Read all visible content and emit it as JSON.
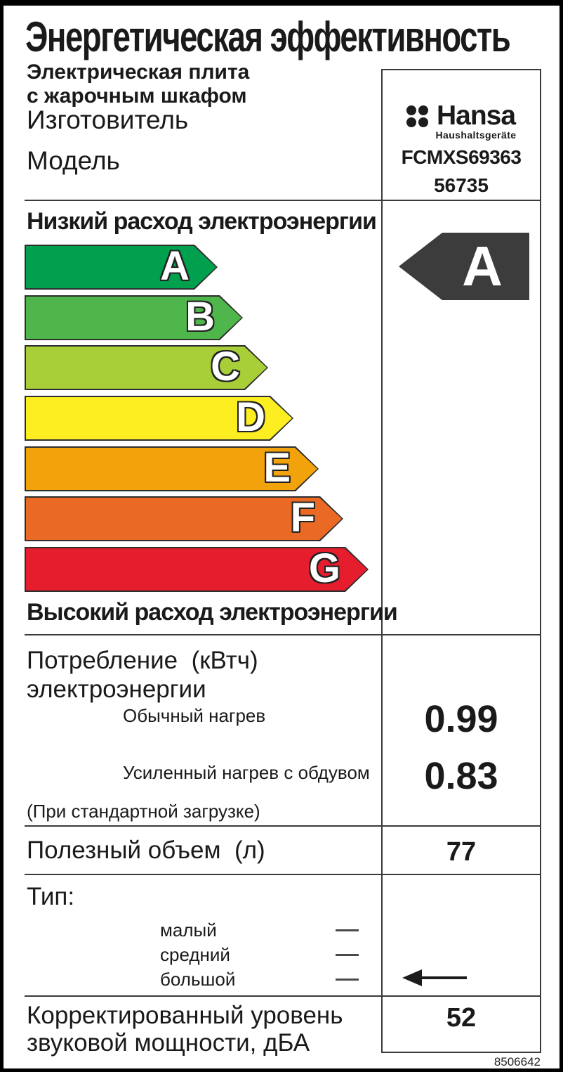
{
  "label": {
    "title": "Энергетическая эффективность",
    "subtitle_line1": "Электрическая плита",
    "subtitle_line2": "с жарочным шкафом",
    "manufacturer_label": "Изготовитель",
    "model_label": "Модель",
    "brand": {
      "name": "Hansa",
      "tagline": "Haushaltsgeräte",
      "model_code": "FCMXS69363",
      "model_number": "56735"
    },
    "scale": {
      "low_label": "Низкий расход электроэнергии",
      "high_label": "Высокий расход электроэнергии",
      "grades": [
        {
          "letter": "A",
          "color": "#00a04e"
        },
        {
          "letter": "B",
          "color": "#4eb64a"
        },
        {
          "letter": "C",
          "color": "#a8cf38"
        },
        {
          "letter": "D",
          "color": "#fcee21"
        },
        {
          "letter": "E",
          "color": "#f2a30b"
        },
        {
          "letter": "F",
          "color": "#ea6a25"
        },
        {
          "letter": "G",
          "color": "#e51d2c"
        }
      ],
      "rating": "A",
      "rating_color": "#3c3c3c"
    },
    "consumption": {
      "heading_line1": "Потребление  (кВтч)",
      "heading_line2": "электроэнергии",
      "rows": [
        {
          "label": "Обычный нагрев",
          "value": "0.99"
        },
        {
          "label": "Усиленный нагрев с обдувом",
          "value": "0.83"
        }
      ],
      "note": "(При стандартной загрузке)"
    },
    "volume": {
      "label": "Полезный объем  (л)",
      "value": "77"
    },
    "type": {
      "label": "Тип:",
      "options": [
        "малый",
        "средний",
        "большой"
      ],
      "selected": "большой"
    },
    "noise": {
      "label_line1": "Корректированный уровень",
      "label_line2": "звуковой мощности, дБА",
      "value": "52"
    },
    "doc_number": "8506642"
  }
}
